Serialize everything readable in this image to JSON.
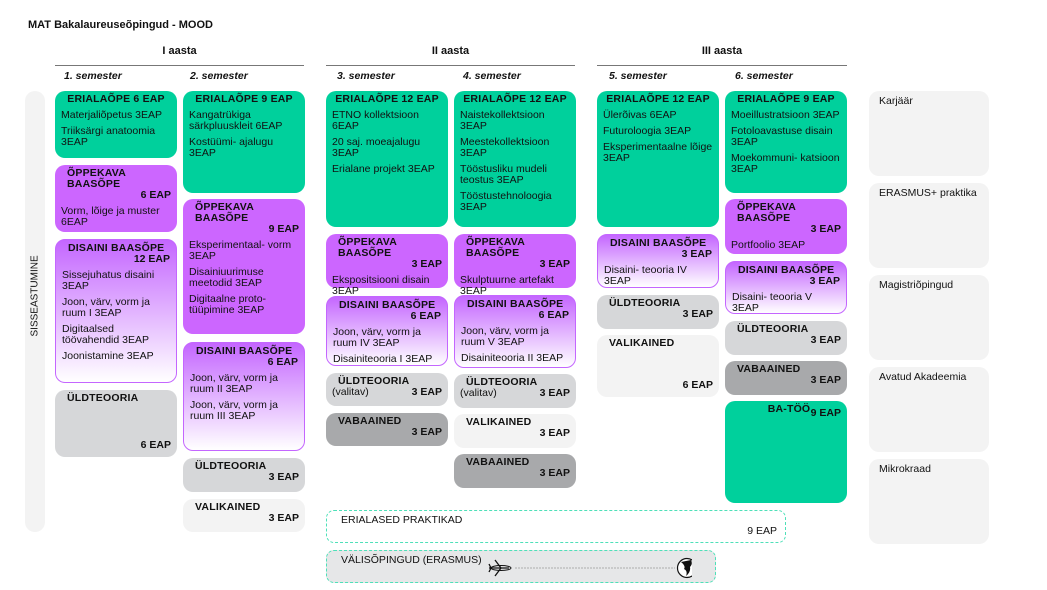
{
  "title": "MAT Bakalaureuseõpingud - MOOD",
  "years": [
    "I aasta",
    "II aasta",
    "III aasta"
  ],
  "semesters": [
    "1. semester",
    "2. semester",
    "3. semester",
    "4. semester",
    "5. semester",
    "6. semester"
  ],
  "side_label": "SISSEASTUMINE",
  "columns": [
    {
      "boxes": [
        {
          "kind": "green",
          "title": "ERIALAÕPE   6 EAP",
          "items": [
            "Materjaliõpetus 3EAP",
            "Triiksärgi anatoomia 3EAP"
          ]
        },
        {
          "kind": "purple",
          "title": "ÕPPEKAVA BAASÕPE",
          "eap": "6 EAP",
          "items": [
            "Vorm, lõige ja muster 6EAP"
          ]
        },
        {
          "kind": "grad",
          "title": "DISAINI BAASÕPE",
          "eap": "12 EAP",
          "items": [
            "Sissejuhatus disaini 3EAP",
            "Joon, värv, vorm ja ruum I  3EAP",
            "Digitaalsed töövahendid 3EAP",
            "Joonistamine 3EAP"
          ]
        },
        {
          "kind": "gray",
          "title": "ÜLDTEOORIA",
          "bottom_eap": "6 EAP",
          "items": []
        }
      ]
    },
    {
      "boxes": [
        {
          "kind": "green",
          "title": "ERIALAÕPE   9 EAP",
          "items": [
            "Kangatrükiga särkpluuskleit 6EAP",
            "Kostüümi- ajalugu 3EAP"
          ]
        },
        {
          "kind": "purple",
          "title": "ÕPPEKAVA BAASÕPE",
          "eap": "9 EAP",
          "items": [
            "Eksperimentaal- vorm 3EAP",
            "Disainiuurimuse meetodid 3EAP",
            "Digitaalne proto- tüüpimine 3EAP"
          ]
        },
        {
          "kind": "grad",
          "title": "DISAINI BAASÕPE",
          "eap": "6 EAP",
          "items": [
            "Joon, värv, vorm ja ruum II 3EAP",
            "Joon, värv, vorm ja ruum III 3EAP"
          ]
        },
        {
          "kind": "gray",
          "title": "ÜLDTEOORIA",
          "eap": "3 EAP",
          "items": []
        },
        {
          "kind": "light",
          "title": "VALIKAINED",
          "eap": "3 EAP",
          "items": []
        }
      ]
    },
    {
      "boxes": [
        {
          "kind": "green",
          "title": "ERIALAÕPE 12 EAP",
          "items": [
            "ETNO kollektsioon 6EAP",
            "20 saj. moeajalugu 3EAP",
            "Erialane projekt 3EAP"
          ]
        },
        {
          "kind": "purple",
          "title": "ÕPPEKAVA BAASÕPE",
          "eap": "3 EAP",
          "items": [
            "Ekspositsiooni disain 3EAP"
          ]
        },
        {
          "kind": "grad",
          "title": "DISAINI BAASÕPE",
          "eap": "6 EAP",
          "items": [
            "Joon, värv, vorm ja ruum IV 3EAP",
            "Disainiteooria I 3EAP"
          ]
        },
        {
          "kind": "gray",
          "title": "ÜLDTEOORIA",
          "sub": "(valitav)",
          "eap": "3 EAP",
          "items": []
        },
        {
          "kind": "dark",
          "title": "VABAAINED",
          "eap": "3 EAP",
          "items": []
        }
      ]
    },
    {
      "boxes": [
        {
          "kind": "green",
          "title": "ERIALAÕPE 12 EAP",
          "items": [
            "Naistekollektsioon 3EAP",
            "Meestekollektsioon 3EAP",
            "Tööstusliku mudeli teostus 3EAP",
            "Tööstustehnoloogia 3EAP"
          ]
        },
        {
          "kind": "purple",
          "title": "ÕPPEKAVA BAASÕPE",
          "eap": "3 EAP",
          "items": [
            "Skulptuurne artefakt 3EAP"
          ]
        },
        {
          "kind": "grad",
          "title": "DISAINI BAASÕPE",
          "eap": "6 EAP",
          "items": [
            "Joon, värv, vorm ja ruum V 3EAP",
            "Disainiteooria II 3EAP"
          ]
        },
        {
          "kind": "gray",
          "title": "ÜLDTEOORIA",
          "sub": "(valitav)",
          "eap": "3 EAP",
          "items": []
        },
        {
          "kind": "light",
          "title": "VALIKAINED",
          "eap": "3 EAP",
          "items": []
        },
        {
          "kind": "dark",
          "title": "VABAAINED",
          "eap": "3 EAP",
          "items": []
        }
      ]
    },
    {
      "boxes": [
        {
          "kind": "green",
          "title": "ERIALAÕPE 12 EAP",
          "items": [
            "Ülerõivas 6EAP",
            "Futuroloogia 3EAP",
            "Eksperimentaalne lõige 3EAP"
          ]
        },
        {
          "kind": "grad",
          "title": "DISAINI BAASÕPE",
          "eap": "3 EAP",
          "items": [
            "Disaini- teooria IV 3EAP"
          ]
        },
        {
          "kind": "gray",
          "title": "ÜLDTEOORIA",
          "eap": "3 EAP",
          "items": []
        },
        {
          "kind": "light",
          "title": "VALIKAINED",
          "bottom_eap": "6 EAP",
          "items": []
        }
      ]
    },
    {
      "boxes": [
        {
          "kind": "green",
          "title": "ERIALAÕPE   9 EAP",
          "items": [
            "Moeillustratsioon 3EAP",
            "Fotoloavastuse disain 3EAP",
            "Moekommuni- katsioon 3EAP"
          ]
        },
        {
          "kind": "purple",
          "title": "ÕPPEKAVA BAASÕPE",
          "eap": "3 EAP",
          "items": [
            "Portfoolio 3EAP"
          ]
        },
        {
          "kind": "grad",
          "title": "DISAINI BAASÕPE",
          "eap": "3 EAP",
          "items": [
            "Disaini- teooria V 3EAP"
          ]
        },
        {
          "kind": "gray",
          "title": "ÜLDTEOORIA",
          "eap": "3 EAP",
          "items": []
        },
        {
          "kind": "dark",
          "title": "VABAAINED",
          "eap": "3 EAP",
          "items": []
        },
        {
          "kind": "green",
          "title": "BA-TÖÖ",
          "eap": "9 EAP",
          "items": [],
          "left": true
        }
      ]
    }
  ],
  "practice": {
    "label": "ERIALASED PRAKTIKAD",
    "eap": "9 EAP"
  },
  "abroad": {
    "label": "VÄLISÕPINGUD (ERASMUS)"
  },
  "right_options": [
    "Karjäär",
    "ERASMUS+ praktika",
    "Magistriõpingud",
    "Avatud Akadeemia",
    "Mikrokraad"
  ],
  "colors": {
    "erialaope": "#00d09c",
    "oppekava": "#cc66ff",
    "yldteooria": "#d6d7d9",
    "valikained": "#f3f3f3",
    "vabaained": "#a8a9ab"
  }
}
